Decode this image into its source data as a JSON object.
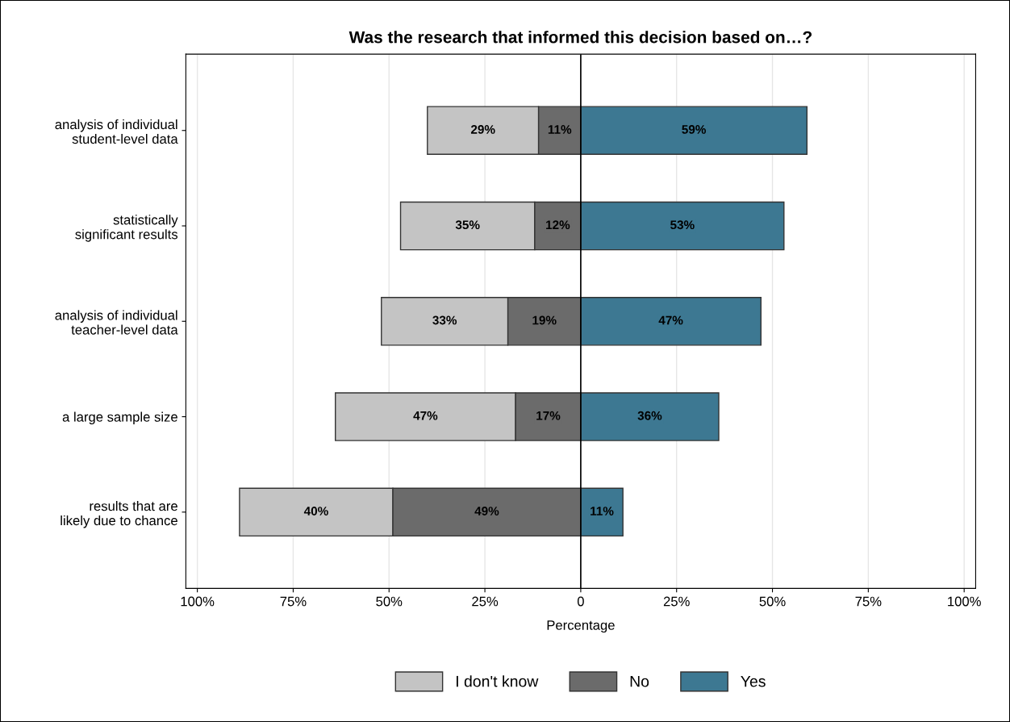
{
  "chart_data": {
    "type": "bar",
    "orientation": "horizontal",
    "title": "Was the research that informed this decision based on…?",
    "xlabel": "Percentage",
    "categories": [
      "analysis of individual\nstudent-level data",
      "statistically\nsignificant results",
      "analysis of individual\nteacher-level data",
      "a large sample size",
      "results that are\nlikely due to chance"
    ],
    "series": [
      {
        "name": "I don't know",
        "color": "#c4c4c4",
        "base": [
          -40,
          -47,
          -52,
          -64,
          -89
        ],
        "values": [
          29,
          35,
          33,
          47,
          40
        ],
        "value_labels": [
          "29%",
          "35%",
          "33%",
          "47%",
          "40%"
        ]
      },
      {
        "name": "No",
        "color": "#6b6b6b",
        "base": [
          -11,
          -12,
          -19,
          -17,
          -49
        ],
        "values": [
          11,
          12,
          19,
          17,
          49
        ],
        "value_labels": [
          "11%",
          "12%",
          "19%",
          "17%",
          "49%"
        ]
      },
      {
        "name": "Yes",
        "color": "#3d7892",
        "values": [
          59,
          53,
          47,
          36,
          11
        ],
        "value_labels": [
          "59%",
          "53%",
          "47%",
          "36%",
          "11%"
        ]
      }
    ],
    "xlim": [
      -103,
      103
    ],
    "xticks": [
      {
        "value": -100,
        "label": "100%"
      },
      {
        "value": -75,
        "label": "75%"
      },
      {
        "value": -50,
        "label": "50%"
      },
      {
        "value": -25,
        "label": "25%"
      },
      0,
      {
        "value": 25,
        "label": "25%"
      },
      {
        "value": 50,
        "label": "50%"
      },
      {
        "value": 75,
        "label": "75%"
      },
      {
        "value": 100,
        "label": "100%"
      }
    ],
    "ref_lines": [
      {
        "axis": "x",
        "value": 0,
        "color": "#000000"
      }
    ],
    "grid": "x",
    "legend": "bottom"
  }
}
